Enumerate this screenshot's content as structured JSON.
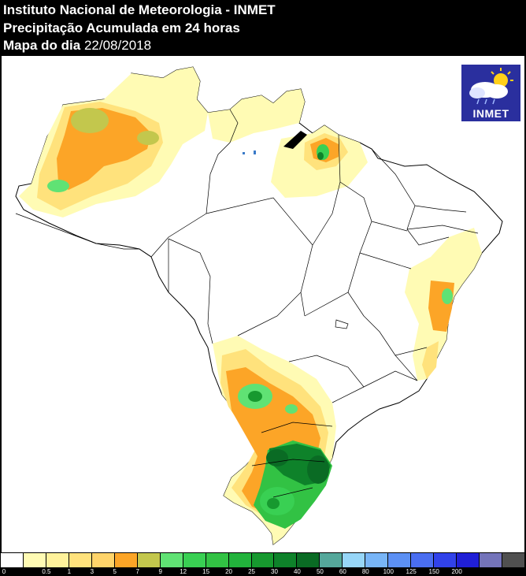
{
  "header": {
    "line1": "Instituto Nacional de Meteorologia - INMET",
    "line2": "Precipitação Acumulada em 24 horas",
    "line3_label": "Mapa do dia",
    "line3_date": "22/08/2018"
  },
  "logo": {
    "text": "INMET",
    "icon": "sun-cloud-rain-icon"
  },
  "legend": {
    "colors": [
      "#ffffff",
      "#fffbb4",
      "#fff29b",
      "#ffe27c",
      "#ffd46a",
      "#fca527",
      "#c3c74d",
      "#60e274",
      "#39d053",
      "#32c244",
      "#22b33c",
      "#17992f",
      "#0e822a",
      "#0a6b24",
      "#55a89b",
      "#97d6f8",
      "#78b5f7",
      "#5c90f4",
      "#4a6ef1",
      "#3142ea",
      "#201fd6",
      "#7474ba",
      "#505050"
    ],
    "labels": [
      "0",
      "0.5",
      "1",
      "3",
      "5",
      "7",
      "9",
      "12",
      "15",
      "20",
      "25",
      "30",
      "40",
      "50",
      "60",
      "80",
      "100",
      "125",
      "150",
      "200"
    ]
  },
  "colors": {
    "yellow1": "#fffbb4",
    "yellow2": "#ffe27c",
    "orange": "#fca527",
    "olive": "#c3c74d",
    "lightgreen": "#60e274",
    "green": "#32c244",
    "darkgreen": "#0e822a",
    "darkestgreen": "#0a6b24"
  }
}
